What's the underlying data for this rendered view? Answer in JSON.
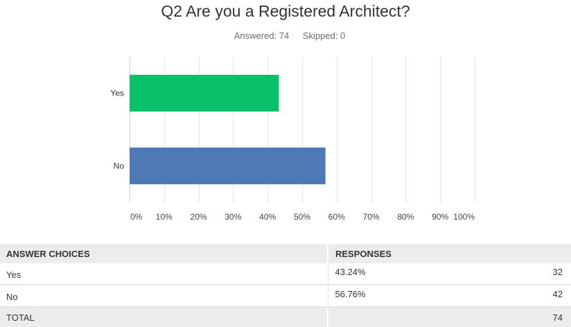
{
  "question": {
    "title": "Q2 Are you a Registered Architect?",
    "answered": "Answered: 74",
    "skipped": "Skipped: 0"
  },
  "chart_data": {
    "type": "bar",
    "orientation": "horizontal",
    "categories": [
      "Yes",
      "No"
    ],
    "values": [
      43.24,
      56.76
    ],
    "colors": [
      "#07c16b",
      "#4d7ab4"
    ],
    "xlim": [
      0,
      100
    ],
    "x_ticks": [
      "0%",
      "10%",
      "20%",
      "30%",
      "40%",
      "50%",
      "60%",
      "70%",
      "80%",
      "90%",
      "100%"
    ],
    "grid": true
  },
  "table": {
    "headers": [
      "ANSWER CHOICES",
      "RESPONSES"
    ],
    "rows": [
      {
        "choice": "Yes",
        "percent": "43.24%",
        "count": "32"
      },
      {
        "choice": "No",
        "percent": "56.76%",
        "count": "42"
      }
    ],
    "total": {
      "label": "TOTAL",
      "count": "74"
    }
  }
}
